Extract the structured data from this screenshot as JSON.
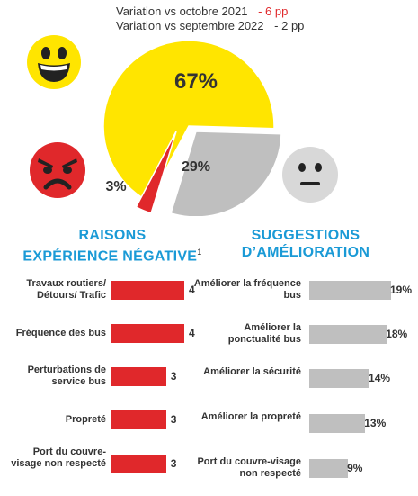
{
  "header": {
    "variation_oct_label": "Variation vs octobre 2021",
    "variation_oct_value": "- 6 pp",
    "variation_sep_label": "Variation vs septembre 2022",
    "variation_sep_value": "- 2 pp"
  },
  "colors": {
    "positive": "#ffe500",
    "neutral": "#bfbfbf",
    "negative": "#e0282b",
    "accent": "#1a9ad6"
  },
  "icons": {
    "happy": "happy-face-icon",
    "angry": "angry-face-icon",
    "neutral": "neutral-face-icon"
  },
  "chart_data": [
    {
      "type": "pie",
      "labels": [
        "67%",
        "29%",
        "3%"
      ],
      "values": [
        67,
        29,
        3
      ],
      "colors": [
        "#ffe500",
        "#bfbfbf",
        "#e0282b"
      ]
    },
    {
      "type": "bar",
      "title_line1": "RAISONS",
      "title_line2": "EXPÉRIENCE NÉGATIVE",
      "title_sup": "1",
      "categories": [
        "Travaux routiers/ Détours/ Trafic",
        "Fréquence des bus",
        "Perturbations de service bus",
        "Propreté",
        "Port du couvre-visage non respecté"
      ],
      "values": [
        4,
        4,
        3,
        3,
        3
      ],
      "value_labels": [
        "4",
        "4",
        "3",
        "3",
        "3"
      ],
      "color": "#e0282b"
    },
    {
      "type": "bar",
      "title_line1": "SUGGESTIONS",
      "title_line2": "D’AMÉLIORATION",
      "categories": [
        "Améliorer la fréquence bus",
        "Améliorer la ponctualité bus",
        "Améliorer la sécurité",
        "Améliorer la propreté",
        "Port du couvre-visage non respecté"
      ],
      "values": [
        19,
        18,
        14,
        13,
        9
      ],
      "value_labels": [
        "19%",
        "18%",
        "14%",
        "13%",
        "9%"
      ],
      "color": "#bfbfbf"
    }
  ]
}
